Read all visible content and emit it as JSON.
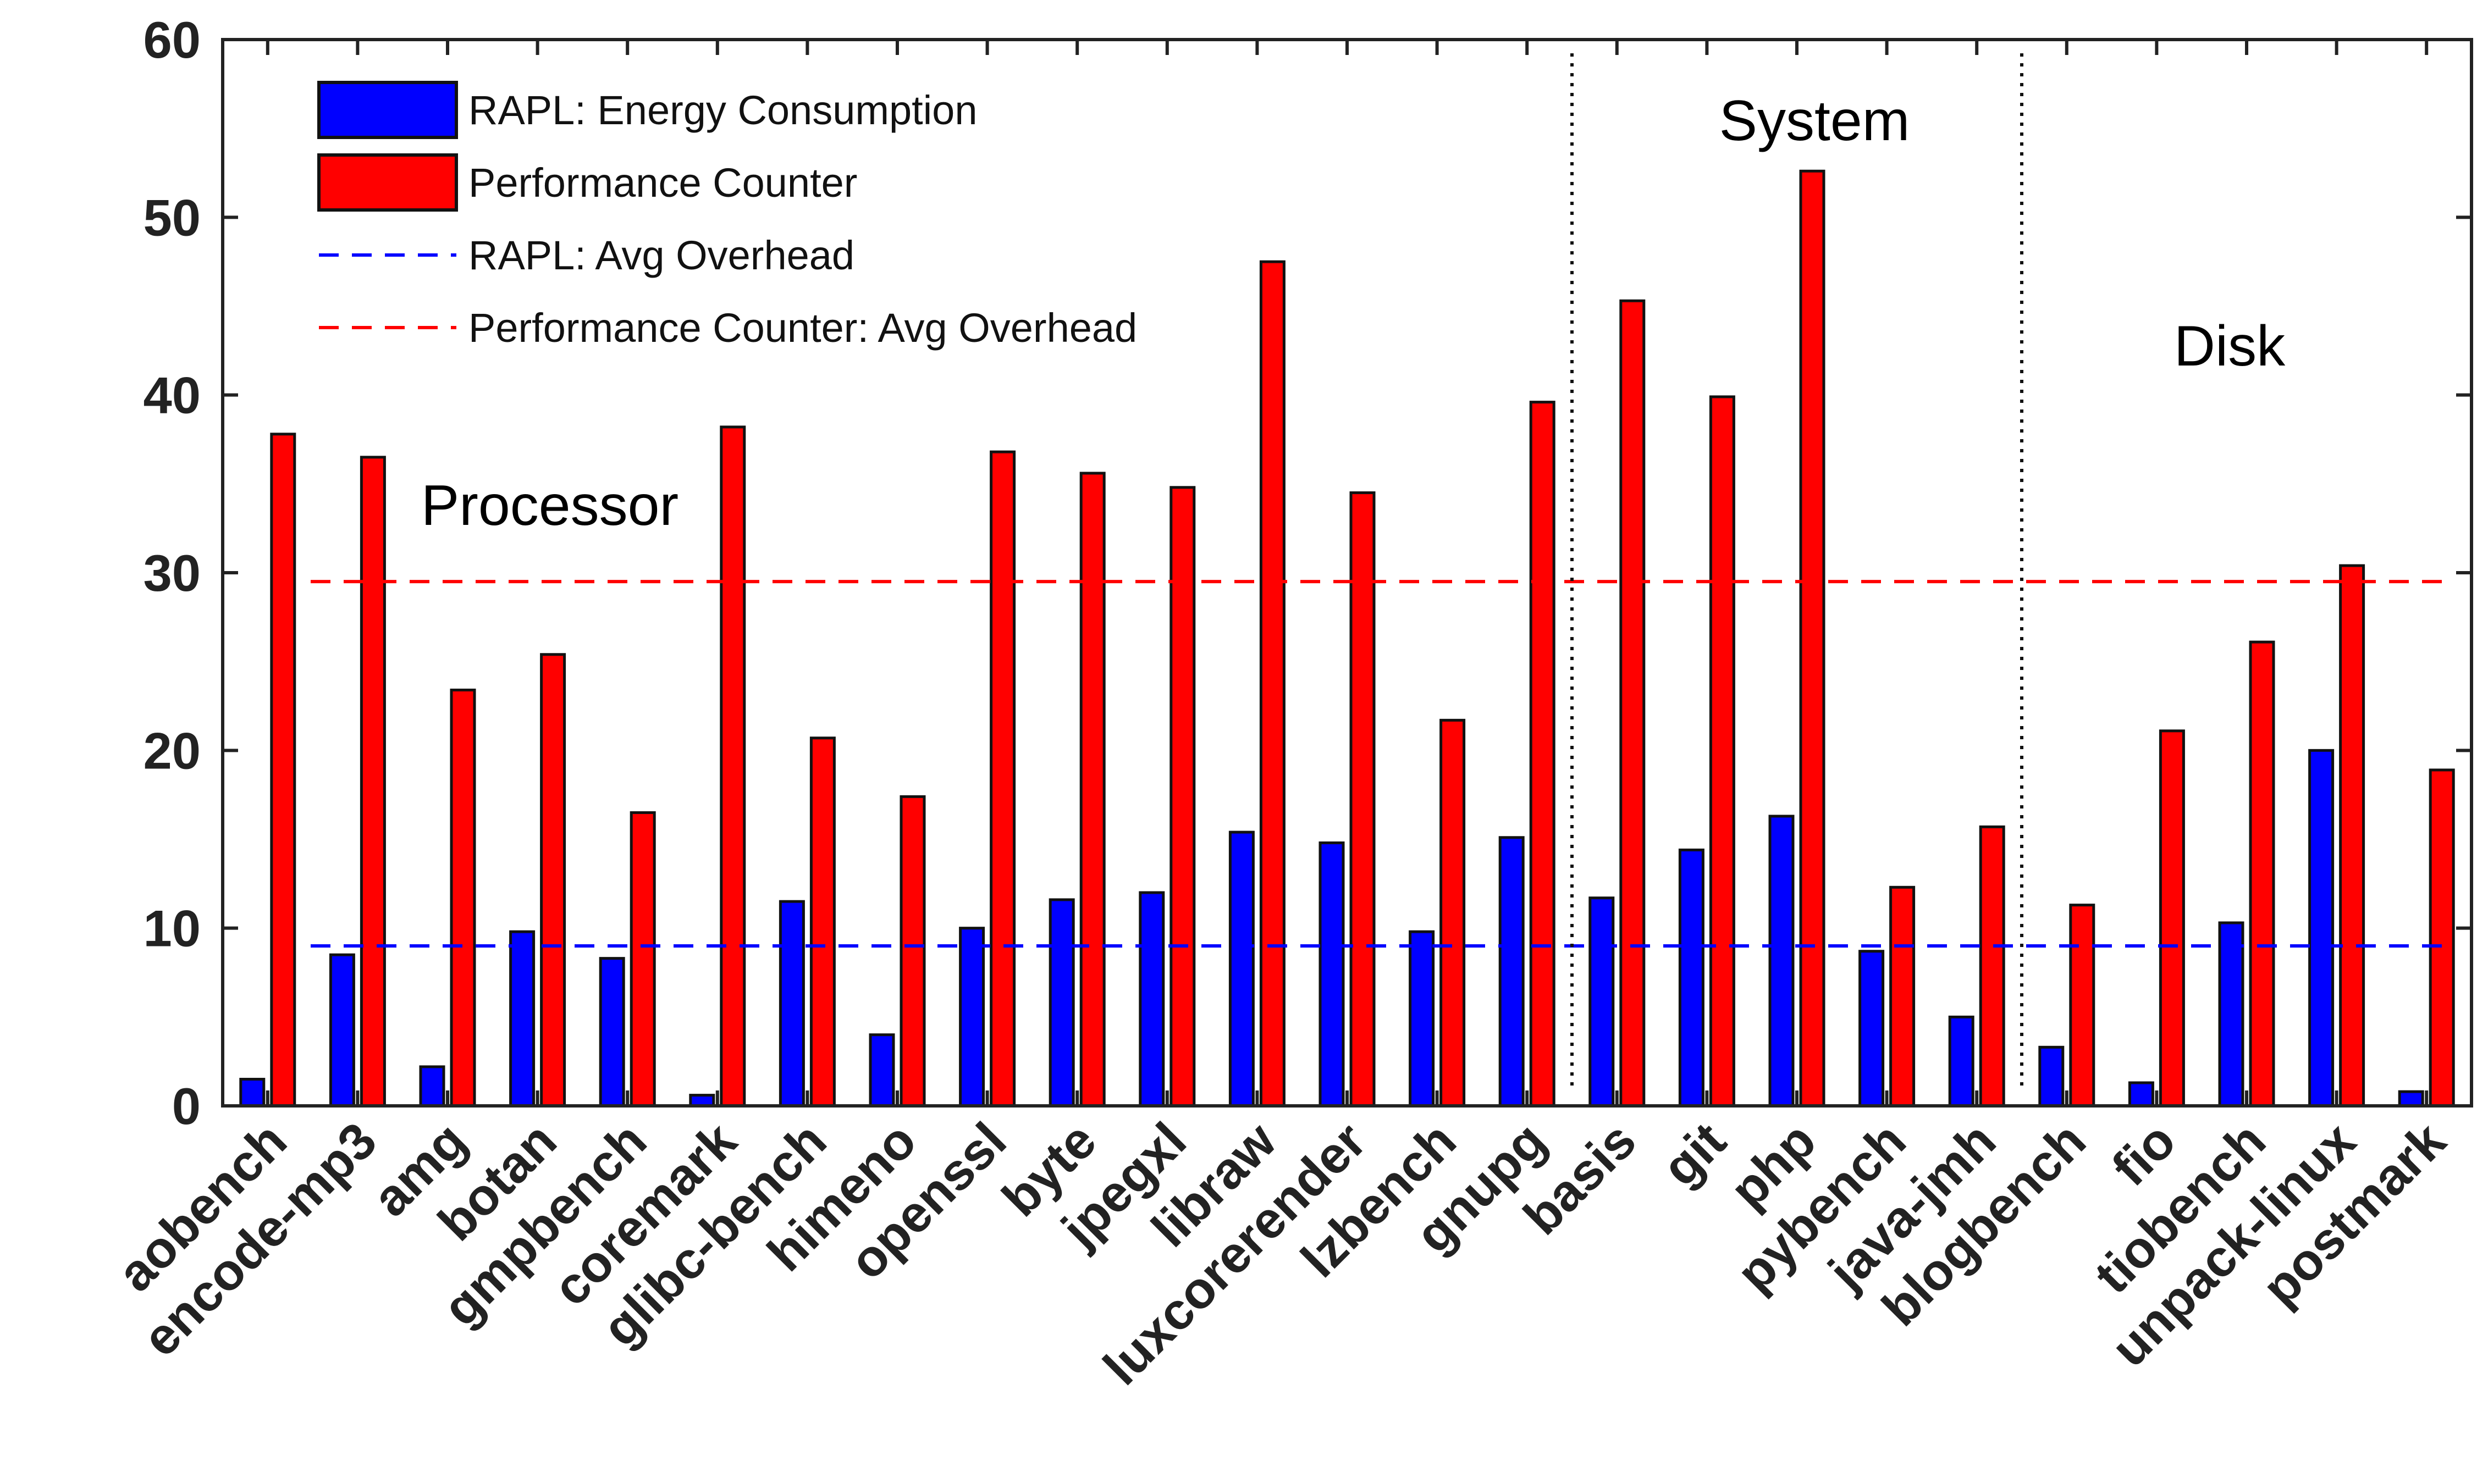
{
  "chart_data": {
    "type": "bar",
    "title": "",
    "xlabel": "",
    "ylabel": "",
    "ylim": [
      0,
      60
    ],
    "yticks": [
      0,
      10,
      20,
      30,
      40,
      50,
      60
    ],
    "categories": [
      "aobench",
      "encode-mp3",
      "amg",
      "botan",
      "gmpbench",
      "coremark",
      "glibc-bench",
      "himeno",
      "openssl",
      "byte",
      "jpegxl",
      "libraw",
      "luxcorerender",
      "lzbench",
      "gnupg",
      "basis",
      "git",
      "php",
      "pybench",
      "java-jmh",
      "blogbench",
      "fio",
      "tiobench",
      "unpack-linux",
      "postmark"
    ],
    "series": [
      {
        "name": "RAPL: Energy Consumption",
        "color": "#0000ff",
        "values": [
          1.5,
          8.5,
          2.2,
          9.8,
          8.3,
          0.6,
          11.5,
          4.0,
          10.0,
          11.6,
          12.0,
          15.4,
          14.8,
          9.8,
          15.1,
          11.7,
          14.4,
          16.3,
          8.7,
          5.0,
          3.3,
          1.3,
          10.3,
          20.0,
          0.8
        ]
      },
      {
        "name": "Performance Counter",
        "color": "#ff0000",
        "values": [
          37.8,
          36.5,
          23.4,
          25.4,
          16.5,
          38.2,
          20.7,
          17.4,
          36.8,
          35.6,
          34.8,
          47.5,
          34.5,
          21.7,
          39.6,
          45.3,
          39.9,
          52.6,
          12.3,
          15.7,
          11.3,
          21.1,
          26.1,
          30.4,
          18.9
        ]
      }
    ],
    "reference_lines": [
      {
        "name": "RAPL: Avg Overhead",
        "value": 9.0,
        "color": "#0000ff",
        "style": "dashed"
      },
      {
        "name": "Performance Counter: Avg Overhead",
        "value": 29.5,
        "color": "#ff0000",
        "style": "dashed"
      }
    ],
    "regions": [
      {
        "label": "Processor",
        "from": "aobench",
        "to": "gnupg"
      },
      {
        "label": "System",
        "from": "basis",
        "to": "java-jmh"
      },
      {
        "label": "Disk",
        "from": "blogbench",
        "to": "postmark"
      }
    ],
    "legend": {
      "position": "top-left",
      "entries": [
        "RAPL: Energy Consumption",
        "Performance Counter",
        "RAPL: Avg Overhead",
        "Performance Counter: Avg Overhead"
      ]
    },
    "grid": false
  }
}
